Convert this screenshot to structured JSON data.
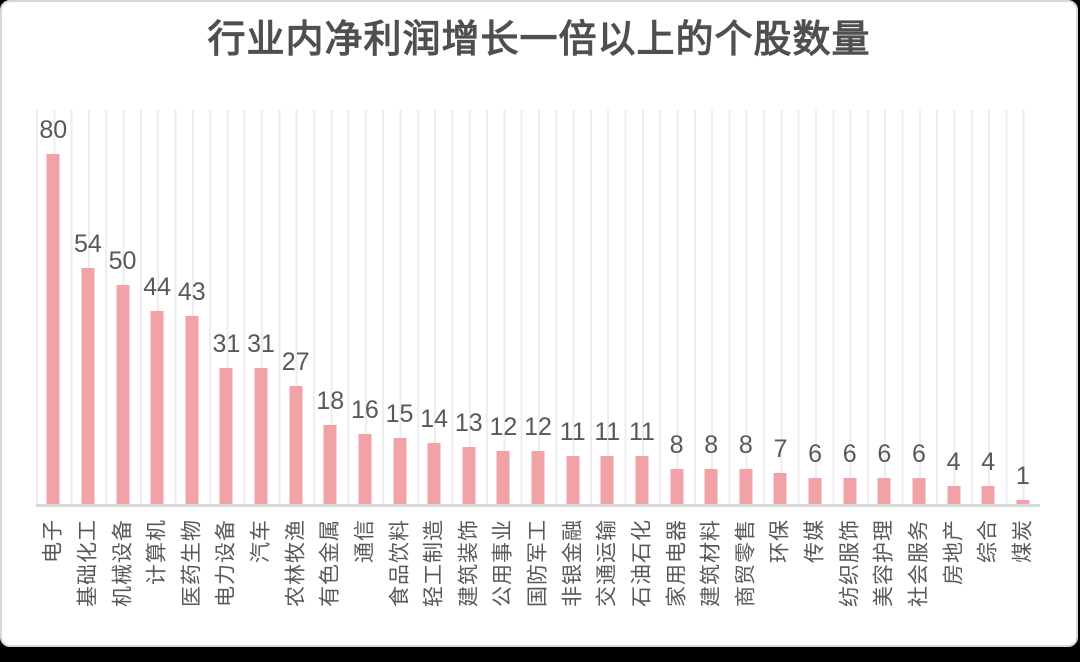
{
  "window": {
    "background_color": "#000000",
    "card_background": "#ffffff",
    "card_border_color": "#d8d8da"
  },
  "chart_data": {
    "type": "bar",
    "title": "行业内净利润增长一倍以上的个股数量",
    "categories": [
      "电子",
      "基础化工",
      "机械设备",
      "计算机",
      "医药生物",
      "电力设备",
      "汽车",
      "农林牧渔",
      "有色金属",
      "通信",
      "食品饮料",
      "轻工制造",
      "建筑装饰",
      "公用事业",
      "国防军工",
      "非银金融",
      "交通运输",
      "石油石化",
      "家用电器",
      "建筑材料",
      "商贸零售",
      "环保",
      "传媒",
      "纺织服饰",
      "美容护理",
      "社会服务",
      "房地产",
      "综合",
      "煤炭"
    ],
    "values": [
      80,
      54,
      50,
      44,
      43,
      31,
      31,
      27,
      18,
      16,
      15,
      14,
      13,
      12,
      12,
      11,
      11,
      11,
      8,
      8,
      8,
      7,
      6,
      6,
      6,
      6,
      4,
      4,
      1
    ],
    "xlabel": "",
    "ylabel": "",
    "ylim": [
      0,
      90
    ],
    "grid": "vertical-minor-lines",
    "legend": "none",
    "value_labels": "above-bars",
    "category_label_rotation_deg": 90,
    "colors": {
      "bar": "#f0a2a6",
      "grid": "#ededef",
      "axis_line": "#d9d9d9",
      "labels": "#595959",
      "title": "#4f4f4f"
    }
  }
}
